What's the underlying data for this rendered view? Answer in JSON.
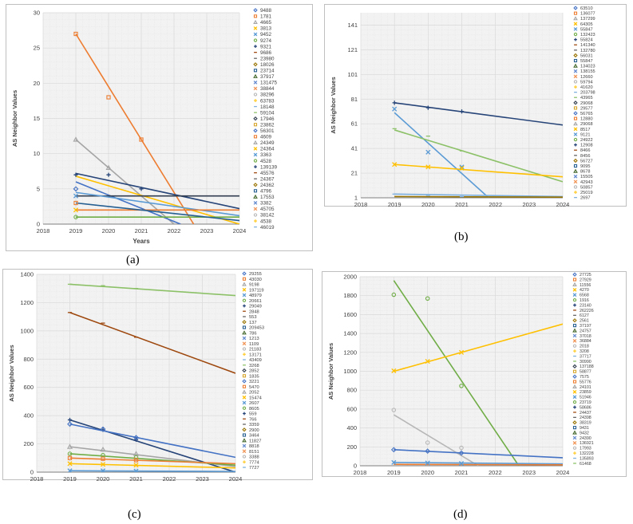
{
  "colors": {
    "grid": "#d9d9d9",
    "plot_bg": "#f2f2f2",
    "axis": "#7f7f7f",
    "text": "#404040",
    "palette": [
      "#4472c4",
      "#ed7d31",
      "#a5a5a5",
      "#ffc000",
      "#5b9bd5",
      "#70ad47",
      "#264478",
      "#9e480e",
      "#636363",
      "#997300",
      "#255e91",
      "#43682b",
      "#698ed0",
      "#f1975a",
      "#b7b7b7",
      "#ffcd33",
      "#7cafdd",
      "#8cc168",
      "#333f50",
      "#d6a52c"
    ]
  },
  "chart_data": [
    {
      "id": "a",
      "caption": "(a)",
      "type": "line",
      "xlabel": "Years",
      "ylabel": "AS Neighbor Values",
      "xlim": [
        2018,
        2024
      ],
      "ylim": [
        0,
        30
      ],
      "yticks": [
        0,
        5,
        10,
        15,
        20,
        25,
        30
      ],
      "xticks": [
        2018,
        2019,
        2020,
        2021,
        2022,
        2023,
        2024
      ],
      "legend": [
        "9488",
        "1781",
        "4665",
        "3813",
        "9452",
        "9274",
        "9321",
        "9686",
        "23980",
        "18026",
        "23714",
        "37917",
        "131475",
        "38844",
        "38296",
        "63783",
        "18148",
        "59104",
        "17946",
        "23862",
        "56301",
        "4609",
        "24349",
        "24364",
        "3363",
        "4528",
        "139139",
        "45576",
        "24367",
        "24362",
        "4796",
        "17553",
        "3382",
        "45705",
        "38142",
        "4538",
        "46019"
      ],
      "points": [
        {
          "name": "27 at 2019",
          "series": "4609",
          "x": 2019,
          "y": 27
        },
        {
          "name": "18 at 2020",
          "series": "4609",
          "x": 2020,
          "y": 18
        },
        {
          "name": "12 at 2021",
          "series": "4609",
          "x": 2021,
          "y": 12
        },
        {
          "name": "12 at 2019",
          "series": "4665",
          "x": 2019,
          "y": 12
        },
        {
          "name": "8 at 2020",
          "series": "4665",
          "x": 2020,
          "y": 8
        },
        {
          "name": "7 at 2019",
          "series": "9321",
          "x": 2019,
          "y": 7
        },
        {
          "name": "7 at 2020",
          "series": "9321",
          "x": 2020,
          "y": 7
        },
        {
          "name": "5 at 2021",
          "series": "9321",
          "x": 2021,
          "y": 5
        },
        {
          "name": "5 at 2019",
          "series": "9488",
          "x": 2019,
          "y": 5
        },
        {
          "name": "4 at 2019",
          "series": "9452",
          "x": 2019,
          "y": 4
        },
        {
          "name": "3 at 2019",
          "series": "1781",
          "x": 2019,
          "y": 3
        },
        {
          "name": "2 at 2019",
          "series": "3813",
          "x": 2019,
          "y": 2
        },
        {
          "name": "1 at 2019",
          "series": "9274",
          "x": 2019,
          "y": 1
        }
      ],
      "trendlines": [
        {
          "series": "4609",
          "x": [
            2019,
            2022.6
          ],
          "y": [
            27,
            0
          ]
        },
        {
          "series": "4665",
          "x": [
            2019,
            2022
          ],
          "y": [
            12,
            0
          ]
        },
        {
          "series": "9321",
          "x": [
            2019,
            2024
          ],
          "y": [
            7.2,
            2.2
          ]
        },
        {
          "series": "3813",
          "x": [
            2019,
            2024
          ],
          "y": [
            6.8,
            0
          ]
        },
        {
          "series": "9488",
          "x": [
            2019,
            2022.2
          ],
          "y": [
            6,
            0
          ]
        },
        {
          "series": "17946",
          "x": [
            2019,
            2024
          ],
          "y": [
            4,
            4
          ]
        },
        {
          "series": "9452",
          "x": [
            2019,
            2024
          ],
          "y": [
            4.5,
            1.2
          ]
        },
        {
          "series": "1781",
          "x": [
            2019,
            2024
          ],
          "y": [
            2,
            2
          ]
        },
        {
          "series": "9274",
          "x": [
            2019,
            2024
          ],
          "y": [
            1,
            1
          ]
        },
        {
          "series": "23714",
          "x": [
            2019,
            2024
          ],
          "y": [
            3,
            0.5
          ]
        }
      ]
    },
    {
      "id": "b",
      "caption": "(b)",
      "type": "line",
      "xlabel": "Years",
      "ylabel": "AS Neighbor Values",
      "xlim": [
        2018,
        2024
      ],
      "ylim": [
        1,
        151
      ],
      "yticks": [
        1,
        21,
        41,
        61,
        81,
        101,
        121,
        141
      ],
      "xticks": [
        2018,
        2019,
        2020,
        2021,
        2022,
        2023,
        2024
      ],
      "legend": [
        "63510",
        "136077",
        "137299",
        "64305",
        "55847",
        "132423",
        "55824",
        "141340",
        "132780",
        "56031",
        "55847",
        "134023",
        "138155",
        "12660",
        "59794",
        "41620",
        "203798",
        "43965",
        "29068",
        "29577",
        "56765",
        "12880",
        "29068",
        "8517",
        "9121",
        "24922",
        "12908",
        "8466",
        "8456",
        "56727",
        "9095",
        "8678",
        "15505",
        "42943",
        "50857",
        "25019",
        "2697"
      ],
      "points": [
        {
          "name": "78 at 2019",
          "series": "55824",
          "x": 2019,
          "y": 78
        },
        {
          "name": "74 at 2020",
          "series": "55824",
          "x": 2020,
          "y": 74
        },
        {
          "name": "71 at 2021",
          "series": "55824",
          "x": 2021,
          "y": 71
        },
        {
          "name": "73 at 2019",
          "series": "55847",
          "x": 2019,
          "y": 73
        },
        {
          "name": "38 at 2020",
          "series": "55847",
          "x": 2020,
          "y": 38
        },
        {
          "name": "26 at 2021",
          "series": "55847",
          "x": 2021,
          "y": 26
        },
        {
          "name": "57 at 2019",
          "series": "43965",
          "x": 2019,
          "y": 57
        },
        {
          "name": "51 at 2020",
          "series": "43965",
          "x": 2020,
          "y": 51
        },
        {
          "name": "39 at 2021",
          "series": "43965",
          "x": 2021,
          "y": 39
        },
        {
          "name": "28 at 2019",
          "series": "8517",
          "x": 2019,
          "y": 28
        },
        {
          "name": "26 at 2020",
          "series": "8517",
          "x": 2020,
          "y": 26
        },
        {
          "name": "25 at 2021",
          "series": "8517",
          "x": 2021,
          "y": 25
        },
        {
          "name": "4 at 2019",
          "series": "2697",
          "x": 2019,
          "y": 4
        },
        {
          "name": "3 at 2020",
          "series": "2697",
          "x": 2020,
          "y": 3
        },
        {
          "name": "2 at 2021",
          "series": "2697",
          "x": 2021,
          "y": 2
        }
      ],
      "trendlines": [
        {
          "series": "55824",
          "x": [
            2019,
            2024
          ],
          "y": [
            78,
            60
          ]
        },
        {
          "series": "55847",
          "x": [
            2019,
            2021.8
          ],
          "y": [
            70,
            1
          ]
        },
        {
          "series": "43965",
          "x": [
            2019,
            2024
          ],
          "y": [
            56,
            14
          ]
        },
        {
          "series": "8517",
          "x": [
            2019,
            2024
          ],
          "y": [
            28,
            18
          ]
        },
        {
          "series": "2697",
          "x": [
            2019,
            2024
          ],
          "y": [
            4,
            2
          ]
        },
        {
          "series": "56031",
          "x": [
            2019,
            2024
          ],
          "y": [
            2,
            1.5
          ]
        }
      ]
    },
    {
      "id": "c",
      "caption": "(c)",
      "type": "line",
      "xlabel": "Years",
      "ylabel": "AS Neighbor Values",
      "xlim": [
        2018,
        2024
      ],
      "ylim": [
        0,
        1400
      ],
      "yticks": [
        0,
        200,
        400,
        600,
        800,
        1000,
        1200,
        1400
      ],
      "xticks": [
        2018,
        2019,
        2020,
        2021,
        2022,
        2023,
        2024
      ],
      "legend": [
        "29255",
        "43030",
        "9198",
        "197119",
        "48979",
        "20661",
        "29049",
        "2848",
        "553",
        "137",
        "209453",
        "786",
        "1213",
        "1109",
        "21183",
        "13171",
        "43409",
        "3268",
        "2852",
        "1835",
        "3221",
        "5470",
        "2052",
        "15474",
        "2607",
        "8605",
        "559",
        "766",
        "3359",
        "2900",
        "3464",
        "11827",
        "8818",
        "8151",
        "3388",
        "7774",
        "7727"
      ],
      "points": [
        {
          "name": "1330 at 2019",
          "series": "3268",
          "x": 2019,
          "y": 1330
        },
        {
          "name": "1320 at 2020",
          "series": "3268",
          "x": 2020,
          "y": 1320
        },
        {
          "name": "1300 at 2021",
          "series": "3268",
          "x": 2021,
          "y": 1300
        },
        {
          "name": "1130 at 2019",
          "series": "2848",
          "x": 2019,
          "y": 1130
        },
        {
          "name": "1055 at 2020",
          "series": "2848",
          "x": 2020,
          "y": 1055
        },
        {
          "name": "955 at 2021",
          "series": "2848",
          "x": 2021,
          "y": 955
        },
        {
          "name": "370 at 2019",
          "series": "29049",
          "x": 2019,
          "y": 370
        },
        {
          "name": "300 at 2020",
          "series": "29049",
          "x": 2020,
          "y": 300
        },
        {
          "name": "230 at 2021",
          "series": "29049",
          "x": 2021,
          "y": 230
        },
        {
          "name": "340 at 2019",
          "series": "29255",
          "x": 2019,
          "y": 340
        },
        {
          "name": "305 at 2020",
          "series": "29255",
          "x": 2020,
          "y": 305
        },
        {
          "name": "245 at 2021",
          "series": "29255",
          "x": 2021,
          "y": 245
        },
        {
          "name": "180 at 2019",
          "series": "9198",
          "x": 2019,
          "y": 180
        },
        {
          "name": "160 at 2020",
          "series": "9198",
          "x": 2020,
          "y": 160
        },
        {
          "name": "130 at 2021",
          "series": "9198",
          "x": 2021,
          "y": 130
        },
        {
          "name": "130 at 2019",
          "series": "20661",
          "x": 2019,
          "y": 130
        },
        {
          "name": "120 at 2020",
          "series": "20661",
          "x": 2020,
          "y": 120
        },
        {
          "name": "105 at 2021",
          "series": "20661",
          "x": 2021,
          "y": 105
        },
        {
          "name": "100 at 2019",
          "series": "43030",
          "x": 2019,
          "y": 100
        },
        {
          "name": "95 at 2020",
          "series": "43030",
          "x": 2020,
          "y": 95
        },
        {
          "name": "85 at 2021",
          "series": "43030",
          "x": 2021,
          "y": 85
        },
        {
          "name": "60 at 2019",
          "series": "197119",
          "x": 2019,
          "y": 60
        },
        {
          "name": "55 at 2020",
          "series": "197119",
          "x": 2020,
          "y": 55
        },
        {
          "name": "50 at 2021",
          "series": "197119",
          "x": 2021,
          "y": 50
        },
        {
          "name": "10 at 2019",
          "series": "48979",
          "x": 2019,
          "y": 10
        },
        {
          "name": "10 at 2020",
          "series": "48979",
          "x": 2020,
          "y": 10
        },
        {
          "name": "8 at 2021",
          "series": "48979",
          "x": 2021,
          "y": 8
        }
      ],
      "trendlines": [
        {
          "series": "3268",
          "x": [
            2019,
            2024
          ],
          "y": [
            1330,
            1250
          ]
        },
        {
          "series": "2848",
          "x": [
            2019,
            2024
          ],
          "y": [
            1130,
            700
          ]
        },
        {
          "series": "29049",
          "x": [
            2019,
            2024
          ],
          "y": [
            370,
            0
          ]
        },
        {
          "series": "29255",
          "x": [
            2019,
            2024
          ],
          "y": [
            340,
            105
          ]
        },
        {
          "series": "9198",
          "x": [
            2019,
            2024
          ],
          "y": [
            180,
            40
          ]
        },
        {
          "series": "20661",
          "x": [
            2019,
            2024
          ],
          "y": [
            130,
            50
          ]
        },
        {
          "series": "43030",
          "x": [
            2019,
            2024
          ],
          "y": [
            100,
            60
          ]
        },
        {
          "series": "197119",
          "x": [
            2019,
            2024
          ],
          "y": [
            60,
            30
          ]
        },
        {
          "series": "48979",
          "x": [
            2019,
            2024
          ],
          "y": [
            10,
            5
          ]
        }
      ]
    },
    {
      "id": "d",
      "caption": "(d)",
      "type": "line",
      "xlabel": "Years",
      "ylabel": "AS Neighbor Values",
      "xlim": [
        2018,
        2024
      ],
      "ylim": [
        0,
        2000
      ],
      "yticks": [
        0,
        200,
        400,
        600,
        800,
        1000,
        1200,
        1400,
        1600,
        1800,
        2000
      ],
      "xticks": [
        2018,
        2019,
        2020,
        2021,
        2022,
        2023,
        2024
      ],
      "legend": [
        "27725",
        "27929",
        "11556",
        "4270",
        "6568",
        "1916",
        "23140",
        "262226",
        "6127",
        "2561",
        "37197",
        "24757",
        "37018",
        "36884",
        "2018",
        "3208",
        "37717",
        "30990",
        "137188",
        "58877",
        "7575",
        "55776",
        "24101",
        "23859",
        "51946",
        "23719",
        "58686",
        "24437",
        "24398",
        "38319",
        "9431",
        "9432",
        "24390",
        "136921",
        "17993",
        "132228",
        "135893",
        "61468"
      ],
      "points": [
        {
          "name": "1810 at 2019",
          "series": "1916",
          "x": 2019,
          "y": 1810
        },
        {
          "name": "1770 at 2020",
          "series": "1916",
          "x": 2020,
          "y": 1770
        },
        {
          "name": "845 at 2021",
          "series": "1916",
          "x": 2021,
          "y": 845
        },
        {
          "name": "1005 at 2019",
          "series": "4270",
          "x": 2019,
          "y": 1005
        },
        {
          "name": "1105 at 2020",
          "series": "4270",
          "x": 2020,
          "y": 1105
        },
        {
          "name": "1200 at 2021",
          "series": "4270",
          "x": 2021,
          "y": 1200
        },
        {
          "name": "590 at 2019",
          "series": "2018",
          "x": 2019,
          "y": 590
        },
        {
          "name": "245 at 2020",
          "series": "2018",
          "x": 2020,
          "y": 245
        },
        {
          "name": "190 at 2021",
          "series": "2018",
          "x": 2021,
          "y": 190
        },
        {
          "name": "170 at 2019",
          "series": "27725",
          "x": 2019,
          "y": 170
        },
        {
          "name": "155 at 2020",
          "series": "27725",
          "x": 2020,
          "y": 155
        },
        {
          "name": "135 at 2021",
          "series": "27725",
          "x": 2021,
          "y": 135
        },
        {
          "name": "35 at 2019",
          "series": "6568",
          "x": 2019,
          "y": 35
        },
        {
          "name": "30 at 2020",
          "series": "6568",
          "x": 2020,
          "y": 30
        },
        {
          "name": "25 at 2021",
          "series": "6568",
          "x": 2021,
          "y": 25
        }
      ],
      "trendlines": [
        {
          "series": "1916",
          "x": [
            2019,
            2022.7
          ],
          "y": [
            1960,
            0
          ]
        },
        {
          "series": "4270",
          "x": [
            2019,
            2024
          ],
          "y": [
            1000,
            1500
          ]
        },
        {
          "series": "2018",
          "x": [
            2019,
            2021.5
          ],
          "y": [
            540,
            0
          ]
        },
        {
          "series": "27725",
          "x": [
            2019,
            2024
          ],
          "y": [
            170,
            85
          ]
        },
        {
          "series": "6568",
          "x": [
            2019,
            2024
          ],
          "y": [
            35,
            20
          ]
        },
        {
          "series": "27929",
          "x": [
            2019,
            2024
          ],
          "y": [
            15,
            10
          ]
        }
      ]
    }
  ]
}
